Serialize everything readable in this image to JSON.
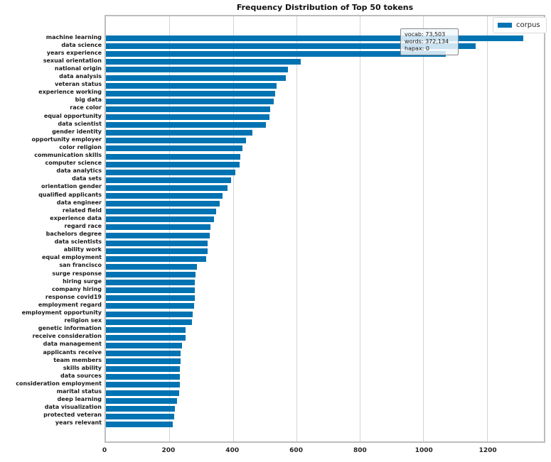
{
  "title": "Frequency Distribution of Top 50 tokens",
  "legend": {
    "label": "corpus",
    "swatch_color": "#0173b2"
  },
  "annotation_box": {
    "lines": [
      "vocab: 73,503",
      "words: 372,134",
      "hapax: 0"
    ],
    "vocab": "73,503",
    "words": "372,134",
    "hapax": "0"
  },
  "colors": {
    "bar": "#0173b2",
    "gridline": "#d4d4d4",
    "spine": "#bdbdbd",
    "background": "#ffffff"
  },
  "chart_data": {
    "type": "bar",
    "orientation": "horizontal",
    "title": "Frequency Distribution of Top 50 tokens",
    "series_name": "corpus",
    "xlabel": "",
    "ylabel": "",
    "xlim": [
      0,
      1380
    ],
    "xticks": [
      0,
      200,
      400,
      600,
      800,
      1000,
      1200
    ],
    "grid": "vertical",
    "legend_position": "upper right",
    "categories": [
      "machine learning",
      "data science",
      "years experience",
      "sexual orientation",
      "national origin",
      "data analysis",
      "veteran status",
      "experience working",
      "big data",
      "race color",
      "equal opportunity",
      "data scientist",
      "gender identity",
      "opportunity employer",
      "color religion",
      "communication skills",
      "computer science",
      "data analytics",
      "data sets",
      "orientation gender",
      "qualified applicants",
      "data engineer",
      "related field",
      "experience data",
      "regard race",
      "bachelors degree",
      "data scientists",
      "ability work",
      "equal employment",
      "san francisco",
      "surge response",
      "hiring surge",
      "company hiring",
      "response covid19",
      "employment regard",
      "employment opportunity",
      "religion sex",
      "genetic information",
      "receive consideration",
      "data management",
      "applicants receive",
      "team members",
      "skills ability",
      "data sources",
      "consideration employment",
      "marital status",
      "deep learning",
      "data visualization",
      "protected veteran",
      "years relevant"
    ],
    "values": [
      1315,
      1165,
      1070,
      613,
      574,
      567,
      537,
      533,
      528,
      517,
      516,
      503,
      462,
      441,
      430,
      423,
      422,
      407,
      394,
      382,
      368,
      358,
      347,
      341,
      329,
      326,
      321,
      320,
      316,
      286,
      282,
      281,
      281,
      280,
      277,
      274,
      272,
      252,
      250,
      239,
      236,
      235,
      234,
      233,
      232,
      231,
      225,
      218,
      216,
      210
    ]
  }
}
